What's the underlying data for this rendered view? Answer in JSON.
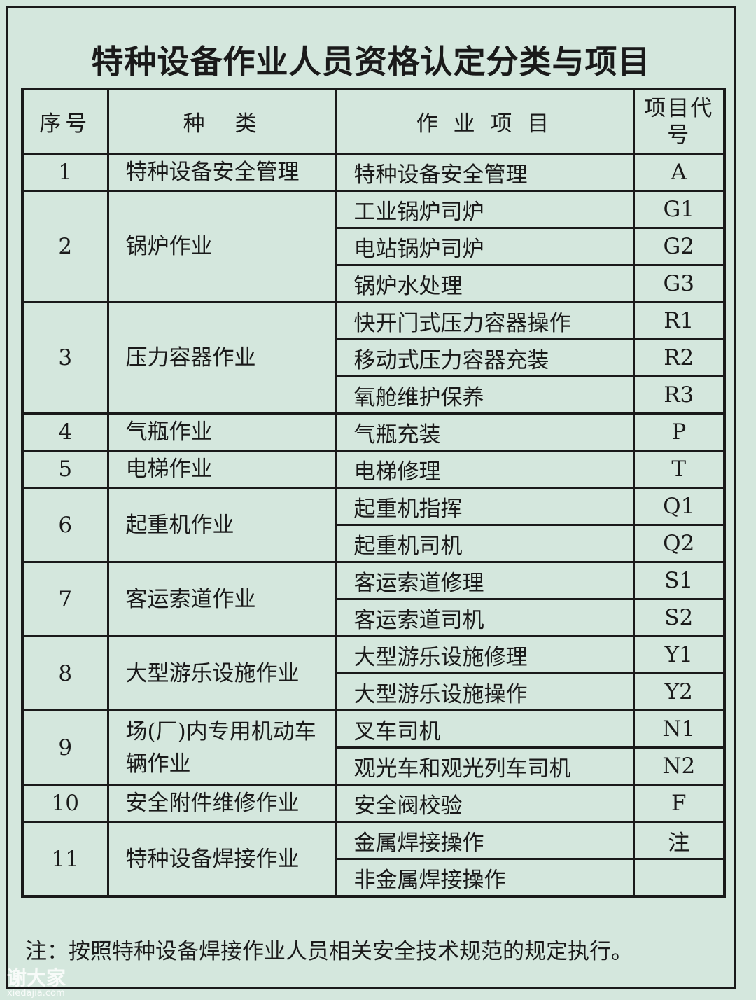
{
  "title": "特种设备作业人员资格认定分类与项目",
  "headers": {
    "no": "序号",
    "category": "种　类",
    "item": "作 业 项 目",
    "code": "项目代号"
  },
  "groups": [
    {
      "no": "1",
      "category": "特种设备安全管理",
      "items": [
        {
          "name": "特种设备安全管理",
          "code": "A"
        }
      ]
    },
    {
      "no": "2",
      "category": "锅炉作业",
      "items": [
        {
          "name": "工业锅炉司炉",
          "code": "G1"
        },
        {
          "name": "电站锅炉司炉",
          "code": "G2"
        },
        {
          "name": "锅炉水处理",
          "code": "G3"
        }
      ]
    },
    {
      "no": "3",
      "category": "压力容器作业",
      "items": [
        {
          "name": "快开门式压力容器操作",
          "code": "R1"
        },
        {
          "name": "移动式压力容器充装",
          "code": "R2"
        },
        {
          "name": "氧舱维护保养",
          "code": "R3"
        }
      ]
    },
    {
      "no": "4",
      "category": "气瓶作业",
      "items": [
        {
          "name": "气瓶充装",
          "code": "P"
        }
      ]
    },
    {
      "no": "5",
      "category": "电梯作业",
      "items": [
        {
          "name": "电梯修理",
          "code": "T"
        }
      ]
    },
    {
      "no": "6",
      "category": "起重机作业",
      "items": [
        {
          "name": "起重机指挥",
          "code": "Q1"
        },
        {
          "name": "起重机司机",
          "code": "Q2"
        }
      ]
    },
    {
      "no": "7",
      "category": "客运索道作业",
      "items": [
        {
          "name": "客运索道修理",
          "code": "S1"
        },
        {
          "name": "客运索道司机",
          "code": "S2"
        }
      ]
    },
    {
      "no": "8",
      "category": "大型游乐设施作业",
      "items": [
        {
          "name": "大型游乐设施修理",
          "code": "Y1"
        },
        {
          "name": "大型游乐设施操作",
          "code": "Y2"
        }
      ]
    },
    {
      "no": "9",
      "category": "场(厂)内专用机动车辆作业",
      "items": [
        {
          "name": "叉车司机",
          "code": "N1"
        },
        {
          "name": "观光车和观光列车司机",
          "code": "N2"
        }
      ]
    },
    {
      "no": "10",
      "category": "安全附件维修作业",
      "items": [
        {
          "name": "安全阀校验",
          "code": "F"
        }
      ]
    },
    {
      "no": "11",
      "category": "特种设备焊接作业",
      "items": [
        {
          "name": "金属焊接操作",
          "code": "注"
        },
        {
          "name": "非金属焊接操作",
          "code": ""
        }
      ]
    }
  ],
  "note": "注：按照特种设备焊接作业人员相关安全技术规范的规定执行。",
  "watermark": {
    "logo": "谢大家",
    "site": "xiedajia.com"
  }
}
